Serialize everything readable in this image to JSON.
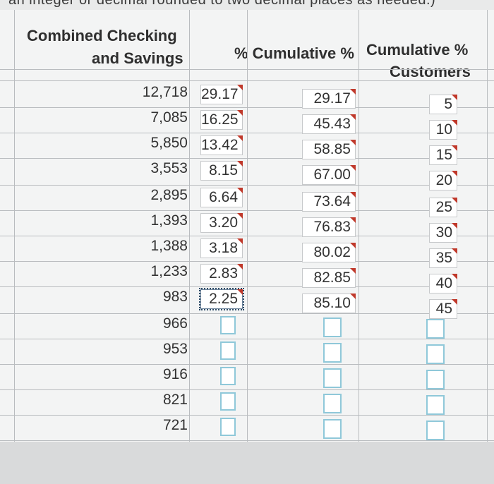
{
  "instruction_fragment": "an integer or decimal rounded to two decimal places as needed.)",
  "headers": {
    "combined_line1": "Combined Checking",
    "combined_line2": "and Savings",
    "percent": "% Cumulative %",
    "cum_customers_line1": "Cumulative %",
    "cum_customers_line2": "Customers"
  },
  "rows": [
    {
      "combined": "12,718",
      "percent": "29.17",
      "cumulative": "29.17",
      "customers": "5"
    },
    {
      "combined": "7,085",
      "percent": "16.25",
      "cumulative": "45.43",
      "customers": "10"
    },
    {
      "combined": "5,850",
      "percent": "13.42",
      "cumulative": "58.85",
      "customers": "15"
    },
    {
      "combined": "3,553",
      "percent": "8.15",
      "cumulative": "67.00",
      "customers": "20"
    },
    {
      "combined": "2,895",
      "percent": "6.64",
      "cumulative": "73.64",
      "customers": "25"
    },
    {
      "combined": "1,393",
      "percent": "3.20",
      "cumulative": "76.83",
      "customers": "30"
    },
    {
      "combined": "1,388",
      "percent": "3.18",
      "cumulative": "80.02",
      "customers": "35"
    },
    {
      "combined": "1,233",
      "percent": "2.83",
      "cumulative": "82.85",
      "customers": "40"
    },
    {
      "combined": "983",
      "percent": "2.25",
      "cumulative": "85.10",
      "customers": "45"
    },
    {
      "combined": "966",
      "percent": "",
      "cumulative": "",
      "customers": ""
    },
    {
      "combined": "953",
      "percent": "",
      "cumulative": "",
      "customers": ""
    },
    {
      "combined": "916",
      "percent": "",
      "cumulative": "",
      "customers": ""
    },
    {
      "combined": "821",
      "percent": "",
      "cumulative": "",
      "customers": ""
    },
    {
      "combined": "721",
      "percent": "",
      "cumulative": "",
      "customers": ""
    }
  ]
}
